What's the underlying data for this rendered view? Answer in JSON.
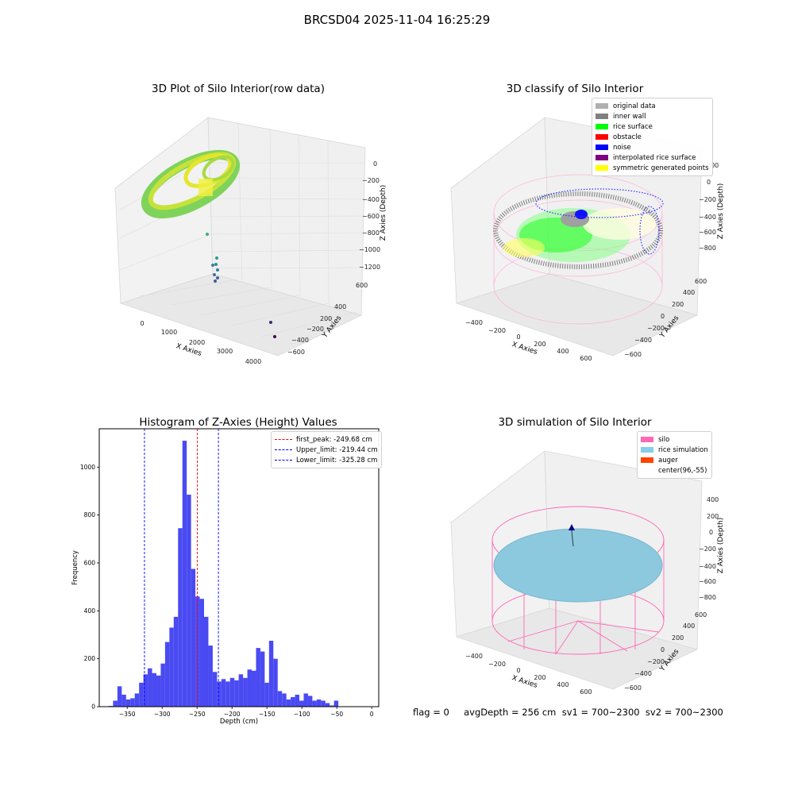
{
  "figure": {
    "title": "BRCSD04 2025-11-04 16:25:29",
    "footer": "flag = 0     avgDepth = 256 cm  sv1 = 700~2300  sv2 = 700~2300"
  },
  "panels": {
    "raw": {
      "title": "3D Plot of Silo Interior(row data)",
      "xlabel": "X Axies",
      "ylabel": "Y Axies",
      "zlabel": "Z Axies (Depth)",
      "xticks": [
        "0",
        "1000",
        "2000",
        "3000",
        "4000"
      ],
      "yticks": [
        "600",
        "400",
        "200",
        "−200",
        "−400",
        "−600"
      ],
      "zticks": [
        "0",
        "−200",
        "−400",
        "−600",
        "−800",
        "−1000",
        "−1200"
      ]
    },
    "classify": {
      "title": "3D classify of Silo Interior",
      "xlabel": "X Axies",
      "ylabel": "Y Axies",
      "zlabel": "Z Axies (Depth)",
      "xticks": [
        "−400",
        "−200",
        "0",
        "200",
        "400",
        "600"
      ],
      "yticks": [
        "600",
        "400",
        "200",
        "0",
        "−200",
        "−400",
        "−600"
      ],
      "zticks": [
        "200",
        "0",
        "−200",
        "−400",
        "−600",
        "−800"
      ],
      "legend": [
        {
          "label": "original data",
          "color": "#b0b0b0"
        },
        {
          "label": "inner wall",
          "color": "#808080"
        },
        {
          "label": "rice surface",
          "color": "#00ff00"
        },
        {
          "label": "obstacle",
          "color": "#ff0000"
        },
        {
          "label": "noise",
          "color": "#0000ff"
        },
        {
          "label": "interpolated rice surface",
          "color": "#800080"
        },
        {
          "label": "symmetric generated points",
          "color": "#ffff00"
        }
      ]
    },
    "hist": {
      "title": "Histogram of Z-Axies (Height) Values",
      "xlabel": "Depth (cm)",
      "ylabel": "Frequency",
      "legend": [
        {
          "label": "first_peak: -249.68 cm",
          "color": "#ff0000"
        },
        {
          "label": "Upper_limit: -219.44 cm",
          "color": "#0000ff"
        },
        {
          "label": "Lower_limit: -325.28 cm",
          "color": "#0000ff"
        }
      ]
    },
    "sim": {
      "title": "3D simulation of Silo Interior",
      "xlabel": "X Axies",
      "ylabel": "Y Axies",
      "zlabel": "Z Axies (Depth)",
      "xticks": [
        "−400",
        "−200",
        "0",
        "200",
        "400",
        "600"
      ],
      "yticks": [
        "600",
        "400",
        "200",
        "0",
        "−200",
        "−400",
        "−600"
      ],
      "zticks": [
        "400",
        "200",
        "0",
        "−200",
        "−400",
        "−600",
        "−800"
      ],
      "legend": [
        {
          "label": "silo",
          "color": "#ff69b4"
        },
        {
          "label": "rice simulation",
          "color": "#87ceeb"
        },
        {
          "label": "auger",
          "color": "#ff4500"
        },
        {
          "label": "center(96,-55)",
          "color": ""
        }
      ]
    }
  },
  "chart_data": {
    "type": "bar",
    "title": "Histogram of Z-Axies (Height) Values",
    "xlabel": "Depth (cm)",
    "ylabel": "Frequency",
    "xlim": [
      -390,
      10
    ],
    "ylim": [
      0,
      1160
    ],
    "xticks": [
      -350,
      -300,
      -250,
      -200,
      -150,
      -100,
      -50,
      0
    ],
    "yticks": [
      0,
      200,
      400,
      600,
      800,
      1000
    ],
    "bin_width": 6.2,
    "bin_start": -376.4,
    "color": "#4a4af2",
    "values": [
      3,
      25,
      85,
      50,
      30,
      35,
      55,
      100,
      135,
      160,
      140,
      130,
      180,
      270,
      330,
      375,
      745,
      1110,
      885,
      575,
      460,
      450,
      375,
      255,
      145,
      105,
      115,
      105,
      120,
      110,
      135,
      120,
      155,
      150,
      245,
      230,
      100,
      275,
      200,
      65,
      55,
      30,
      40,
      50,
      25,
      55,
      45,
      25,
      30,
      25,
      15,
      5,
      25
    ],
    "vlines": [
      {
        "x": -249.68,
        "color": "#ff0000",
        "label": "first_peak: -249.68 cm"
      },
      {
        "x": -219.44,
        "color": "#0000ff",
        "label": "Upper_limit: -219.44 cm"
      },
      {
        "x": -325.28,
        "color": "#0000ff",
        "label": "Lower_limit: -325.28 cm"
      }
    ]
  }
}
